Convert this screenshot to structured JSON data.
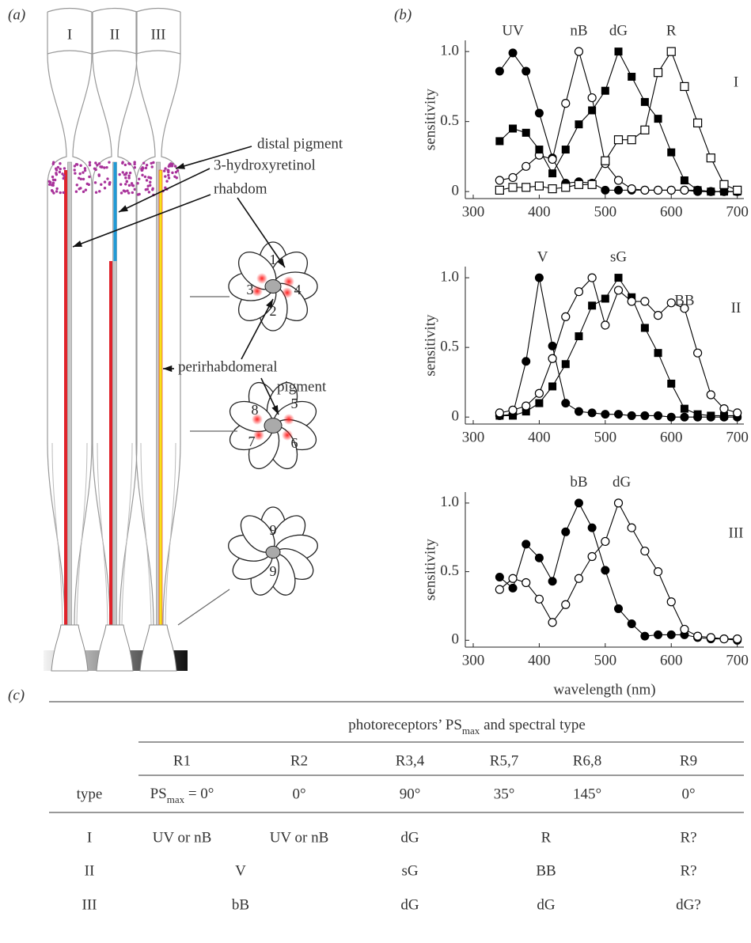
{
  "panels": {
    "a": "(a)",
    "b": "(b)",
    "c": "(c)"
  },
  "diagram": {
    "columns": [
      "I",
      "II",
      "III"
    ],
    "callouts": [
      "distal pigment",
      "3-hydroxyretinol",
      "rhabdom",
      "perirhabdomeral",
      "pigment"
    ],
    "cell_numbers": [
      "1",
      "3",
      "4",
      "2",
      "8",
      "5",
      "7",
      "6",
      "9",
      "9"
    ]
  },
  "chart_data": [
    {
      "type": "line",
      "ylabel": "sensitivity",
      "annotation": "I",
      "x": [
        340,
        360,
        380,
        400,
        420,
        440,
        460,
        480,
        500,
        520,
        540,
        560,
        580,
        600,
        620,
        640,
        660,
        680,
        700
      ],
      "series": [
        {
          "name": "UV",
          "color": "#000000",
          "marker": "filled-circle",
          "values": [
            0.86,
            0.99,
            0.86,
            0.56,
            0.24,
            0.06,
            0.07,
            0.06,
            0.01,
            0.01,
            0.01,
            0.01,
            0.01,
            0.01,
            0.01,
            0,
            0,
            0,
            0
          ]
        },
        {
          "name": "nB",
          "color": "#000000",
          "marker": "open-circle",
          "values": [
            0.08,
            0.1,
            0.18,
            0.26,
            0.23,
            0.63,
            1.0,
            0.67,
            0.2,
            0.08,
            0.02,
            0.01,
            0.01,
            0.01,
            0.01,
            0.01,
            0,
            0,
            0
          ]
        },
        {
          "name": "dG",
          "color": "#000000",
          "marker": "filled-square",
          "values": [
            0.36,
            0.45,
            0.42,
            0.3,
            0.13,
            0.3,
            0.48,
            0.58,
            0.72,
            1.0,
            0.82,
            0.64,
            0.52,
            0.28,
            0.08,
            0.01,
            0,
            0,
            0
          ]
        },
        {
          "name": "R",
          "color": "#000000",
          "marker": "open-square",
          "values": [
            0.01,
            0.03,
            0.03,
            0.04,
            0.02,
            0.03,
            0.05,
            0.05,
            0.22,
            0.37,
            0.37,
            0.44,
            0.85,
            1.0,
            0.75,
            0.49,
            0.24,
            0.05,
            0.01
          ]
        }
      ],
      "xlim": [
        288,
        710
      ],
      "ylim": [
        -0.05,
        1.08
      ],
      "xticks": [
        300,
        400,
        500,
        600,
        700
      ],
      "yticks": [
        0,
        0.5,
        {
          "value": 1,
          "label": "1.0"
        }
      ]
    },
    {
      "type": "line",
      "ylabel": "sensitivity",
      "annotation": "II",
      "x": [
        340,
        360,
        380,
        400,
        420,
        440,
        460,
        480,
        500,
        520,
        540,
        560,
        580,
        600,
        620,
        640,
        660,
        680,
        700
      ],
      "series": [
        {
          "name": "V",
          "color": "#000000",
          "marker": "filled-circle",
          "values": [
            0.01,
            0.02,
            0.4,
            1.0,
            0.51,
            0.1,
            0.04,
            0.03,
            0.02,
            0.02,
            0.01,
            0.01,
            0.01,
            0,
            0,
            0,
            0,
            0,
            0
          ]
        },
        {
          "name": "sG",
          "color": "#000000",
          "marker": "filled-square",
          "values": [
            0.01,
            0.01,
            0.04,
            0.1,
            0.22,
            0.38,
            0.58,
            0.8,
            0.85,
            1.0,
            0.86,
            0.64,
            0.46,
            0.24,
            0.06,
            0.02,
            0.01,
            0.01,
            0.01
          ]
        },
        {
          "name": "BB",
          "color": "#000000",
          "marker": "open-circle",
          "values": [
            0.03,
            0.05,
            0.08,
            0.17,
            0.42,
            0.72,
            0.9,
            1.0,
            0.66,
            0.91,
            0.83,
            0.83,
            0.73,
            0.82,
            0.78,
            0.46,
            0.16,
            0.06,
            0.03
          ]
        }
      ],
      "xlim": [
        288,
        710
      ],
      "ylim": [
        -0.05,
        1.08
      ],
      "xticks": [
        300,
        400,
        500,
        600,
        700
      ],
      "yticks": [
        0,
        0.5,
        {
          "value": 1,
          "label": "1.0"
        }
      ]
    },
    {
      "type": "line",
      "ylabel": "sensitivity",
      "xlabel": "wavelength (nm)",
      "annotation": "III",
      "x": [
        340,
        360,
        380,
        400,
        420,
        440,
        460,
        480,
        500,
        520,
        540,
        560,
        580,
        600,
        620,
        640,
        660,
        680,
        700
      ],
      "series": [
        {
          "name": "bB",
          "color": "#000000",
          "marker": "filled-circle",
          "values": [
            0.46,
            0.38,
            0.7,
            0.6,
            0.43,
            0.79,
            1.0,
            0.82,
            0.51,
            0.23,
            0.12,
            0.03,
            0.04,
            0.04,
            0.04,
            0.02,
            0.01,
            0.01,
            0
          ]
        },
        {
          "name": "dG",
          "color": "#000000",
          "marker": "open-circle",
          "values": [
            0.37,
            0.45,
            0.42,
            0.3,
            0.13,
            0.26,
            0.45,
            0.61,
            0.72,
            1.0,
            0.82,
            0.65,
            0.5,
            0.28,
            0.08,
            0.03,
            0.02,
            0.01,
            0.01
          ]
        }
      ],
      "xlim": [
        288,
        710
      ],
      "ylim": [
        -0.05,
        1.08
      ],
      "xticks": [
        300,
        400,
        500,
        600,
        700
      ],
      "yticks": [
        0,
        0.5,
        {
          "value": 1,
          "label": "1.0"
        }
      ]
    }
  ],
  "table": {
    "group_header": [
      "photoreceptors’ PS",
      "max",
      " and spectral type"
    ],
    "columns": [
      "R1",
      "R2",
      "R3,4",
      "R5,7",
      "R6,8",
      "R9"
    ],
    "type_label": "type",
    "type_values": [
      [
        "PS",
        "max",
        " = 0°"
      ],
      "0°",
      "90°",
      "35°",
      "145°",
      "0°"
    ],
    "rows": [
      [
        "I",
        "UV or nB",
        "UV or nB",
        "dG",
        "R",
        "R?"
      ],
      [
        "II",
        "V",
        "sG",
        "BB",
        "R?"
      ],
      [
        "III",
        "bB",
        "dG",
        "dG",
        "dG?"
      ]
    ]
  }
}
